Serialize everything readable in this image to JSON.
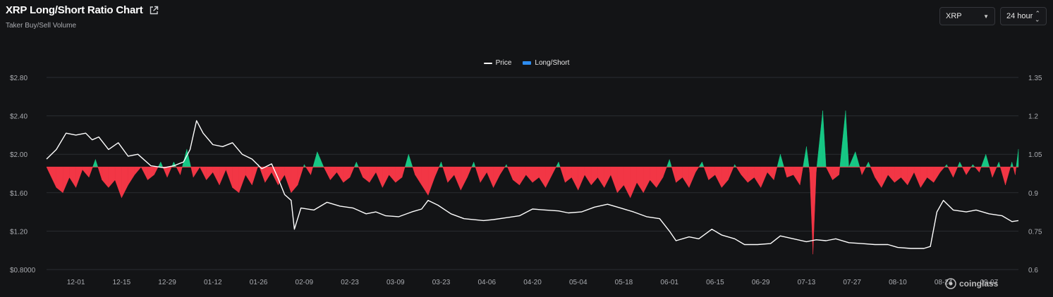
{
  "header": {
    "title": "XRP Long/Short Ratio Chart",
    "subtitle": "Taker Buy/Sell Volume"
  },
  "controls": {
    "coin": "XRP",
    "period": "24 hour"
  },
  "watermark": "coinglass",
  "icons": {
    "external": "external-link-icon",
    "caret_down": "chevron-down-icon",
    "updown": "up-down-arrows-icon",
    "logo": "coinglass-logo-icon"
  },
  "colors": {
    "background": "#131416",
    "price_line": "#ffffff",
    "long": "#16c784",
    "short": "#f23645",
    "legend_bar": "#2d8cf0",
    "grid": "#2a2c31"
  },
  "chart_data": {
    "type": "line+area",
    "title": "XRP Long/Short Ratio Chart",
    "subtitle": "Taker Buy/Sell Volume",
    "legend": [
      "Price",
      "Long/Short"
    ],
    "legend_position": "top-center",
    "grid": true,
    "x_ticks": [
      "12-01",
      "12-15",
      "12-29",
      "01-12",
      "01-26",
      "02-09",
      "02-23",
      "03-09",
      "03-23",
      "04-06",
      "04-20",
      "05-04",
      "05-18",
      "06-01",
      "06-15",
      "06-29",
      "07-13",
      "07-27",
      "08-10",
      "08-24",
      "09-07"
    ],
    "left_axis": {
      "label": "Price",
      "ticks": [
        "$2.80",
        "$2.40",
        "$2.00",
        "$1.60",
        "$1.20",
        "$0.8000"
      ],
      "range": [
        0.8,
        2.8
      ]
    },
    "right_axis": {
      "label": "Long/Short",
      "ticks": [
        "1.35",
        "1.2",
        "1.05",
        "0.9",
        "0.75",
        "0.6"
      ],
      "range": [
        0.6,
        1.35
      ],
      "baseline": 1.0
    },
    "price_series": {
      "name": "Price",
      "points": [
        [
          "11-22",
          1.95
        ],
        [
          "11-25",
          2.05
        ],
        [
          "11-28",
          2.22
        ],
        [
          "12-01",
          2.2
        ],
        [
          "12-04",
          2.22
        ],
        [
          "12-06",
          2.15
        ],
        [
          "12-08",
          2.18
        ],
        [
          "12-11",
          2.05
        ],
        [
          "12-14",
          2.12
        ],
        [
          "12-17",
          1.98
        ],
        [
          "12-20",
          2.0
        ],
        [
          "12-24",
          1.88
        ],
        [
          "12-28",
          1.86
        ],
        [
          "12-31",
          1.88
        ],
        [
          "01-03",
          1.92
        ],
        [
          "01-05",
          2.05
        ],
        [
          "01-07",
          2.35
        ],
        [
          "01-09",
          2.22
        ],
        [
          "01-12",
          2.1
        ],
        [
          "01-15",
          2.08
        ],
        [
          "01-18",
          2.12
        ],
        [
          "01-21",
          2.0
        ],
        [
          "01-24",
          1.95
        ],
        [
          "01-27",
          1.85
        ],
        [
          "01-30",
          1.9
        ],
        [
          "02-01",
          1.75
        ],
        [
          "02-03",
          1.58
        ],
        [
          "02-05",
          1.52
        ],
        [
          "02-06",
          1.22
        ],
        [
          "02-08",
          1.44
        ],
        [
          "02-12",
          1.42
        ],
        [
          "02-16",
          1.5
        ],
        [
          "02-20",
          1.46
        ],
        [
          "02-24",
          1.44
        ],
        [
          "02-28",
          1.38
        ],
        [
          "03-03",
          1.4
        ],
        [
          "03-06",
          1.36
        ],
        [
          "03-10",
          1.35
        ],
        [
          "03-14",
          1.4
        ],
        [
          "03-17",
          1.43
        ],
        [
          "03-19",
          1.52
        ],
        [
          "03-22",
          1.47
        ],
        [
          "03-26",
          1.38
        ],
        [
          "03-30",
          1.33
        ],
        [
          "04-05",
          1.31
        ],
        [
          "04-08",
          1.32
        ],
        [
          "04-12",
          1.34
        ],
        [
          "04-16",
          1.36
        ],
        [
          "04-20",
          1.43
        ],
        [
          "04-24",
          1.42
        ],
        [
          "04-28",
          1.41
        ],
        [
          "05-01",
          1.39
        ],
        [
          "05-05",
          1.4
        ],
        [
          "05-09",
          1.45
        ],
        [
          "05-13",
          1.48
        ],
        [
          "05-17",
          1.44
        ],
        [
          "05-21",
          1.4
        ],
        [
          "05-25",
          1.35
        ],
        [
          "05-29",
          1.33
        ],
        [
          "06-01",
          1.2
        ],
        [
          "06-03",
          1.1
        ],
        [
          "06-07",
          1.14
        ],
        [
          "06-10",
          1.12
        ],
        [
          "06-14",
          1.22
        ],
        [
          "06-17",
          1.16
        ],
        [
          "06-21",
          1.12
        ],
        [
          "06-24",
          1.06
        ],
        [
          "06-28",
          1.06
        ],
        [
          "07-02",
          1.07
        ],
        [
          "07-05",
          1.15
        ],
        [
          "07-09",
          1.12
        ],
        [
          "07-13",
          1.09
        ],
        [
          "07-16",
          1.11
        ],
        [
          "07-19",
          1.1
        ],
        [
          "07-22",
          1.12
        ],
        [
          "07-26",
          1.08
        ],
        [
          "07-30",
          1.07
        ],
        [
          "08-03",
          1.06
        ],
        [
          "08-07",
          1.06
        ],
        [
          "08-10",
          1.03
        ],
        [
          "08-14",
          1.02
        ],
        [
          "08-18",
          1.02
        ],
        [
          "08-20",
          1.04
        ],
        [
          "08-22",
          1.4
        ],
        [
          "08-24",
          1.52
        ],
        [
          "08-27",
          1.42
        ],
        [
          "08-31",
          1.4
        ],
        [
          "09-03",
          1.42
        ],
        [
          "09-07",
          1.38
        ],
        [
          "09-11",
          1.36
        ],
        [
          "09-14",
          1.3
        ],
        [
          "09-16",
          1.31
        ]
      ]
    },
    "ratio_series": {
      "name": "Long/Short",
      "baseline": 1.0,
      "points": [
        [
          "11-22",
          1.0
        ],
        [
          "11-25",
          0.92
        ],
        [
          "11-27",
          0.9
        ],
        [
          "11-29",
          0.96
        ],
        [
          "12-01",
          0.92
        ],
        [
          "12-03",
          0.99
        ],
        [
          "12-05",
          0.96
        ],
        [
          "12-07",
          1.03
        ],
        [
          "12-09",
          0.95
        ],
        [
          "12-11",
          0.92
        ],
        [
          "12-13",
          0.95
        ],
        [
          "12-15",
          0.88
        ],
        [
          "12-17",
          0.93
        ],
        [
          "12-19",
          0.97
        ],
        [
          "12-21",
          1.0
        ],
        [
          "12-23",
          0.95
        ],
        [
          "12-25",
          0.97
        ],
        [
          "12-27",
          1.02
        ],
        [
          "12-29",
          0.96
        ],
        [
          "12-31",
          1.02
        ],
        [
          "01-02",
          0.97
        ],
        [
          "01-04",
          1.07
        ],
        [
          "01-06",
          0.96
        ],
        [
          "01-08",
          1.0
        ],
        [
          "01-10",
          0.95
        ],
        [
          "01-12",
          0.98
        ],
        [
          "01-14",
          0.93
        ],
        [
          "01-16",
          0.99
        ],
        [
          "01-18",
          0.92
        ],
        [
          "01-20",
          0.9
        ],
        [
          "01-22",
          0.97
        ],
        [
          "01-24",
          0.93
        ],
        [
          "01-26",
          1.01
        ],
        [
          "01-28",
          0.94
        ],
        [
          "01-30",
          0.98
        ],
        [
          "02-01",
          0.93
        ],
        [
          "02-03",
          0.97
        ],
        [
          "02-05",
          0.9
        ],
        [
          "02-07",
          0.93
        ],
        [
          "02-09",
          1.01
        ],
        [
          "02-11",
          0.97
        ],
        [
          "02-13",
          1.06
        ],
        [
          "02-15",
          1.0
        ],
        [
          "02-17",
          0.95
        ],
        [
          "02-19",
          0.98
        ],
        [
          "02-21",
          0.94
        ],
        [
          "02-23",
          0.96
        ],
        [
          "02-25",
          1.02
        ],
        [
          "02-27",
          0.96
        ],
        [
          "03-01",
          0.94
        ],
        [
          "03-03",
          0.98
        ],
        [
          "03-05",
          0.92
        ],
        [
          "03-07",
          0.97
        ],
        [
          "03-09",
          0.94
        ],
        [
          "03-11",
          0.96
        ],
        [
          "03-13",
          1.05
        ],
        [
          "03-15",
          0.97
        ],
        [
          "03-17",
          0.93
        ],
        [
          "03-19",
          0.89
        ],
        [
          "03-21",
          0.96
        ],
        [
          "03-23",
          1.02
        ],
        [
          "03-25",
          0.94
        ],
        [
          "03-27",
          0.97
        ],
        [
          "03-29",
          0.91
        ],
        [
          "03-31",
          0.96
        ],
        [
          "04-02",
          1.02
        ],
        [
          "04-04",
          0.94
        ],
        [
          "04-06",
          0.98
        ],
        [
          "04-08",
          0.92
        ],
        [
          "04-10",
          0.97
        ],
        [
          "04-12",
          1.01
        ],
        [
          "04-14",
          0.95
        ],
        [
          "04-16",
          0.93
        ],
        [
          "04-18",
          0.97
        ],
        [
          "04-20",
          0.94
        ],
        [
          "04-22",
          0.96
        ],
        [
          "04-24",
          0.92
        ],
        [
          "04-26",
          0.97
        ],
        [
          "04-28",
          1.02
        ],
        [
          "04-30",
          0.94
        ],
        [
          "05-02",
          0.96
        ],
        [
          "05-04",
          0.91
        ],
        [
          "05-06",
          0.97
        ],
        [
          "05-08",
          0.93
        ],
        [
          "05-10",
          0.96
        ],
        [
          "05-12",
          0.92
        ],
        [
          "05-14",
          0.97
        ],
        [
          "05-16",
          0.9
        ],
        [
          "05-18",
          0.93
        ],
        [
          "05-20",
          0.88
        ],
        [
          "05-22",
          0.94
        ],
        [
          "05-24",
          0.9
        ],
        [
          "05-26",
          0.95
        ],
        [
          "05-28",
          0.92
        ],
        [
          "05-30",
          0.96
        ],
        [
          "06-01",
          1.03
        ],
        [
          "06-03",
          0.94
        ],
        [
          "06-05",
          0.96
        ],
        [
          "06-07",
          0.92
        ],
        [
          "06-09",
          0.98
        ],
        [
          "06-11",
          1.02
        ],
        [
          "06-13",
          0.95
        ],
        [
          "06-15",
          0.97
        ],
        [
          "06-17",
          0.92
        ],
        [
          "06-19",
          0.95
        ],
        [
          "06-21",
          1.01
        ],
        [
          "06-23",
          0.97
        ],
        [
          "06-25",
          0.94
        ],
        [
          "06-27",
          0.96
        ],
        [
          "06-29",
          0.92
        ],
        [
          "07-01",
          0.98
        ],
        [
          "07-03",
          0.95
        ],
        [
          "07-05",
          1.05
        ],
        [
          "07-07",
          0.96
        ],
        [
          "07-09",
          0.97
        ],
        [
          "07-11",
          0.93
        ],
        [
          "07-13",
          1.08
        ],
        [
          "07-14",
          0.98
        ],
        [
          "07-15",
          0.66
        ],
        [
          "07-16",
          0.98
        ],
        [
          "07-18",
          1.22
        ],
        [
          "07-19",
          1.0
        ],
        [
          "07-21",
          0.95
        ],
        [
          "07-23",
          0.97
        ],
        [
          "07-25",
          1.22
        ],
        [
          "07-26",
          1.0
        ],
        [
          "07-28",
          1.06
        ],
        [
          "07-30",
          0.97
        ],
        [
          "08-01",
          1.02
        ],
        [
          "08-03",
          0.96
        ],
        [
          "08-05",
          0.92
        ],
        [
          "08-07",
          0.97
        ],
        [
          "08-09",
          0.94
        ],
        [
          "08-11",
          0.96
        ],
        [
          "08-13",
          0.93
        ],
        [
          "08-15",
          0.98
        ],
        [
          "08-17",
          0.92
        ],
        [
          "08-19",
          0.96
        ],
        [
          "08-21",
          0.94
        ],
        [
          "08-23",
          0.98
        ],
        [
          "08-25",
          1.01
        ],
        [
          "08-27",
          0.96
        ],
        [
          "08-29",
          1.02
        ],
        [
          "08-31",
          0.97
        ],
        [
          "09-02",
          1.01
        ],
        [
          "09-04",
          0.98
        ],
        [
          "09-06",
          1.05
        ],
        [
          "09-08",
          0.96
        ],
        [
          "09-10",
          1.02
        ],
        [
          "09-12",
          0.93
        ],
        [
          "09-14",
          1.02
        ],
        [
          "09-15",
          0.97
        ],
        [
          "09-16",
          1.07
        ]
      ]
    }
  }
}
